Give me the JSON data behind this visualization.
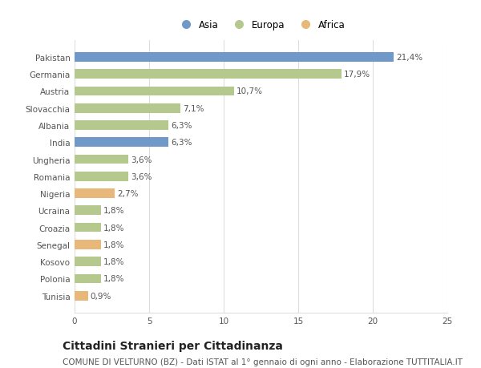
{
  "countries": [
    "Pakistan",
    "Germania",
    "Austria",
    "Slovacchia",
    "Albania",
    "India",
    "Ungheria",
    "Romania",
    "Nigeria",
    "Ucraina",
    "Croazia",
    "Senegal",
    "Kosovo",
    "Polonia",
    "Tunisia"
  ],
  "values": [
    21.4,
    17.9,
    10.7,
    7.1,
    6.3,
    6.3,
    3.6,
    3.6,
    2.7,
    1.8,
    1.8,
    1.8,
    1.8,
    1.8,
    0.9
  ],
  "labels": [
    "21,4%",
    "17,9%",
    "10,7%",
    "7,1%",
    "6,3%",
    "6,3%",
    "3,6%",
    "3,6%",
    "2,7%",
    "1,8%",
    "1,8%",
    "1,8%",
    "1,8%",
    "1,8%",
    "0,9%"
  ],
  "continent": [
    "Asia",
    "Europa",
    "Europa",
    "Europa",
    "Europa",
    "Asia",
    "Europa",
    "Europa",
    "Africa",
    "Europa",
    "Europa",
    "Africa",
    "Europa",
    "Europa",
    "Africa"
  ],
  "colors": {
    "Asia": "#7098c8",
    "Europa": "#b5c98e",
    "Africa": "#e8b87a"
  },
  "xlim": [
    0,
    25
  ],
  "xticks": [
    0,
    5,
    10,
    15,
    20,
    25
  ],
  "title": "Cittadini Stranieri per Cittadinanza",
  "subtitle": "COMUNE DI VELTURNO (BZ) - Dati ISTAT al 1° gennaio di ogni anno - Elaborazione TUTTITALIA.IT",
  "background_color": "#ffffff",
  "grid_color": "#dddddd",
  "bar_height": 0.55,
  "label_fontsize": 7.5,
  "tick_fontsize": 7.5,
  "title_fontsize": 10,
  "subtitle_fontsize": 7.5,
  "legend_fontsize": 8.5
}
